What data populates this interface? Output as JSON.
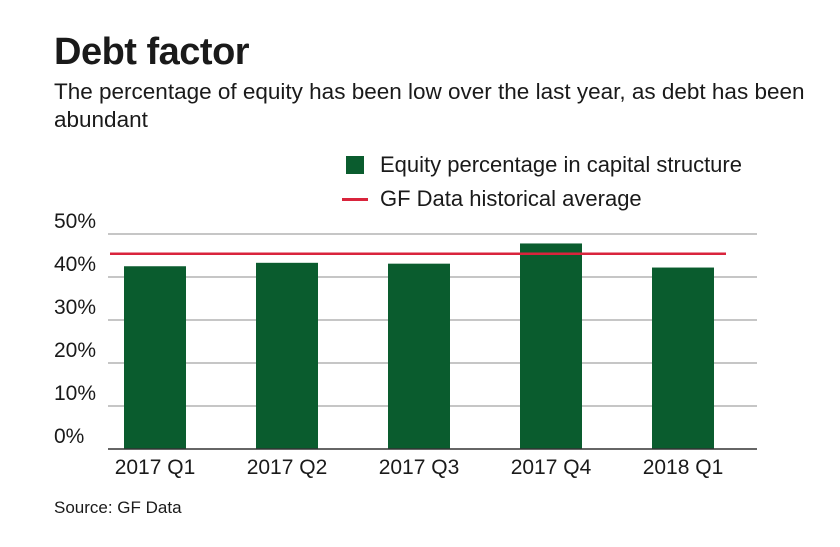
{
  "chart_data": {
    "type": "bar",
    "title": "Debt factor",
    "subtitle": "The percentage of equity has been low over the last year, as debt has been abundant",
    "categories": [
      "2017 Q1",
      "2017 Q2",
      "2017 Q3",
      "2017 Q4",
      "2018 Q1"
    ],
    "series": [
      {
        "name": "Equity percentage in capital structure",
        "values": [
          42.5,
          43.3,
          43.1,
          47.8,
          42.2
        ]
      }
    ],
    "reference_line": {
      "name": "GF Data historical average",
      "value": 45.4
    },
    "ylim": [
      0,
      50
    ],
    "yticks": [
      0,
      10,
      20,
      30,
      40,
      50
    ],
    "ytick_labels": [
      "0%",
      "10%",
      "20%",
      "30%",
      "40%",
      "50%"
    ],
    "xlabel": "",
    "ylabel": "",
    "grid": true,
    "legend_position": "top-right",
    "source": "Source: GF Data",
    "colors": {
      "bar": "#0a5c2e",
      "reference_line": "#d9243c",
      "grid": "#8c8c8c",
      "text": "#1a1a1a"
    }
  }
}
